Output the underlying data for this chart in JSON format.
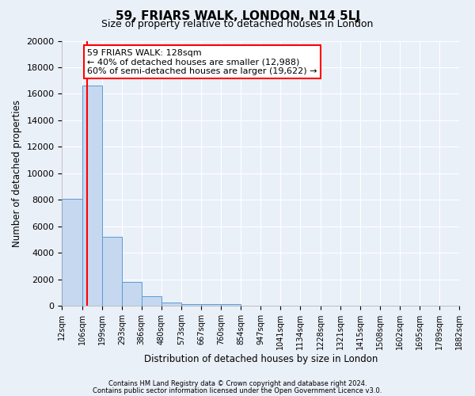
{
  "title": "59, FRIARS WALK, LONDON, N14 5LJ",
  "subtitle": "Size of property relative to detached houses in London",
  "xlabel": "Distribution of detached houses by size in London",
  "ylabel": "Number of detached properties",
  "bin_edges": [
    12,
    106,
    199,
    293,
    386,
    480,
    573,
    667,
    760,
    854,
    947,
    1041,
    1134,
    1228,
    1321,
    1415,
    1508,
    1602,
    1695,
    1789,
    1882
  ],
  "bin_labels": [
    "12sqm",
    "106sqm",
    "199sqm",
    "293sqm",
    "386sqm",
    "480sqm",
    "573sqm",
    "667sqm",
    "760sqm",
    "854sqm",
    "947sqm",
    "1041sqm",
    "1134sqm",
    "1228sqm",
    "1321sqm",
    "1415sqm",
    "1508sqm",
    "1602sqm",
    "1695sqm",
    "1789sqm",
    "1882sqm"
  ],
  "bar_heights": [
    8100,
    16600,
    5200,
    1800,
    750,
    280,
    160,
    120,
    110,
    0,
    0,
    0,
    0,
    0,
    0,
    0,
    0,
    0,
    0,
    0
  ],
  "bar_color": "#c5d8f0",
  "bar_edge_color": "#5b9bd5",
  "red_line_x": 128,
  "annotation_line1": "59 FRIARS WALK: 128sqm",
  "annotation_line2": "← 40% of detached houses are smaller (12,988)",
  "annotation_line3": "60% of semi-detached houses are larger (19,622) →",
  "ylim": [
    0,
    20000
  ],
  "yticks": [
    0,
    2000,
    4000,
    6000,
    8000,
    10000,
    12000,
    14000,
    16000,
    18000,
    20000
  ],
  "background_color": "#eaf0f8",
  "plot_bg_color": "#eaf0f8",
  "footer_line1": "Contains HM Land Registry data © Crown copyright and database right 2024.",
  "footer_line2": "Contains public sector information licensed under the Open Government Licence v3.0.",
  "title_fontsize": 11,
  "subtitle_fontsize": 9,
  "grid_color": "#ffffff",
  "annotation_fontsize": 8
}
